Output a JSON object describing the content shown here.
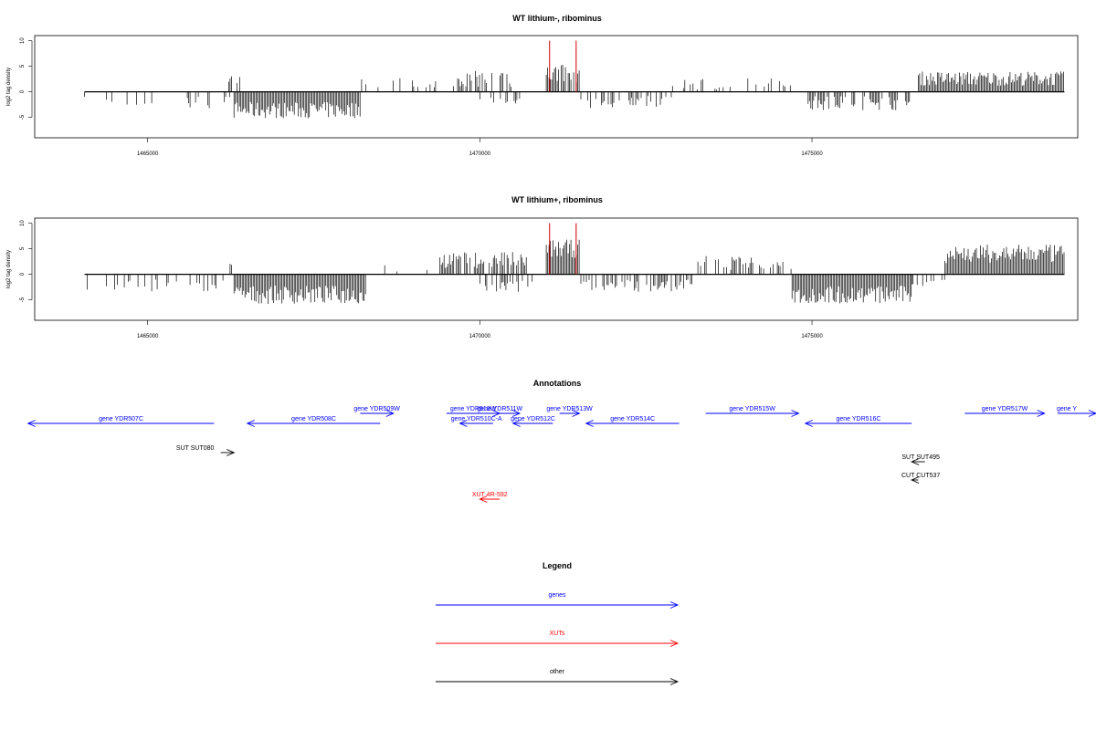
{
  "colors": {
    "gene": "#0000ff",
    "xut": "#ff0000",
    "other": "#000000",
    "data": "#000000"
  },
  "chart_data": [
    {
      "type": "bar",
      "title": "WT lithium-, ribominus",
      "ylabel": "log2 tag density",
      "xlim": [
        1463300,
        1479000
      ],
      "ylim": [
        -9,
        11
      ],
      "xticks": [
        1465000,
        1470000,
        1475000
      ],
      "yticks": [
        -5,
        0,
        5,
        10
      ],
      "highlight_positions": [
        1471050,
        1471450
      ],
      "highlight_value": 10,
      "segments": [
        {
          "start": 1464050,
          "end": 1466300,
          "mean": -2.0,
          "amp": 1.2,
          "density": 0.18
        },
        {
          "start": 1466200,
          "end": 1466400,
          "mean": 2.5,
          "amp": 1.0,
          "density": 0.3
        },
        {
          "start": 1466300,
          "end": 1468200,
          "mean": -3.6,
          "amp": 1.6,
          "density": 1.0
        },
        {
          "start": 1468200,
          "end": 1469500,
          "mean": 1.8,
          "amp": 1.0,
          "density": 0.2
        },
        {
          "start": 1469500,
          "end": 1470600,
          "mean": 2.5,
          "amp": 1.6,
          "density": 0.55
        },
        {
          "start": 1470000,
          "end": 1470600,
          "mean": -1.6,
          "amp": 1.0,
          "density": 0.35
        },
        {
          "start": 1471000,
          "end": 1471500,
          "mean": 3.5,
          "amp": 1.8,
          "density": 0.8
        },
        {
          "start": 1471500,
          "end": 1472900,
          "mean": -2.0,
          "amp": 1.2,
          "density": 0.45
        },
        {
          "start": 1472900,
          "end": 1474700,
          "mean": 1.5,
          "amp": 1.2,
          "density": 0.25
        },
        {
          "start": 1474900,
          "end": 1476500,
          "mean": -2.2,
          "amp": 1.4,
          "density": 0.6
        },
        {
          "start": 1476600,
          "end": 1478800,
          "mean": 2.6,
          "amp": 1.4,
          "density": 1.0
        }
      ]
    },
    {
      "type": "bar",
      "title": "WT lithium+, ribominus",
      "ylabel": "log2 tag density",
      "xlim": [
        1463300,
        1479000
      ],
      "ylim": [
        -9,
        11
      ],
      "xticks": [
        1465000,
        1470000,
        1475000
      ],
      "yticks": [
        -5,
        0,
        5,
        10
      ],
      "highlight_positions": [
        1471050,
        1471450
      ],
      "highlight_value": 10,
      "segments": [
        {
          "start": 1464050,
          "end": 1466200,
          "mean": -2.3,
          "amp": 1.3,
          "density": 0.3
        },
        {
          "start": 1466200,
          "end": 1466300,
          "mean": 1.5,
          "amp": 0.6,
          "density": 0.2
        },
        {
          "start": 1466300,
          "end": 1468300,
          "mean": -4.0,
          "amp": 1.8,
          "density": 1.0
        },
        {
          "start": 1468300,
          "end": 1469500,
          "mean": 1.2,
          "amp": 0.8,
          "density": 0.1
        },
        {
          "start": 1469400,
          "end": 1470700,
          "mean": 2.8,
          "amp": 1.6,
          "density": 0.8
        },
        {
          "start": 1470000,
          "end": 1470800,
          "mean": -2.4,
          "amp": 1.2,
          "density": 0.6
        },
        {
          "start": 1471000,
          "end": 1471500,
          "mean": 5.0,
          "amp": 1.8,
          "density": 1.0
        },
        {
          "start": 1471500,
          "end": 1473200,
          "mean": -2.2,
          "amp": 1.2,
          "density": 0.55
        },
        {
          "start": 1473200,
          "end": 1474700,
          "mean": 2.2,
          "amp": 1.4,
          "density": 0.45
        },
        {
          "start": 1474700,
          "end": 1476500,
          "mean": -4.0,
          "amp": 1.8,
          "density": 1.0
        },
        {
          "start": 1476500,
          "end": 1477000,
          "mean": -1.5,
          "amp": 0.8,
          "density": 0.25
        },
        {
          "start": 1477000,
          "end": 1478800,
          "mean": 4.0,
          "amp": 1.8,
          "density": 1.0
        }
      ]
    }
  ],
  "annotations": {
    "title": "Annotations",
    "features": [
      {
        "label": "gene YDR507C",
        "start": 1463200,
        "end": 1466000,
        "strand": "-",
        "row": 1,
        "kind": "gene"
      },
      {
        "label": "gene YDR508C",
        "start": 1466500,
        "end": 1468500,
        "strand": "-",
        "row": 1,
        "kind": "gene"
      },
      {
        "label": "gene YDR509W",
        "start": 1468200,
        "end": 1468700,
        "strand": "+",
        "row": 0,
        "kind": "gene"
      },
      {
        "label": "gene YDR510W",
        "start": 1469500,
        "end": 1470300,
        "strand": "+",
        "row": 0,
        "kind": "gene"
      },
      {
        "label": "gene YDR510C-A",
        "start": 1469700,
        "end": 1470200,
        "strand": "-",
        "row": 1,
        "kind": "gene"
      },
      {
        "label": "gene YDR511W",
        "start": 1470000,
        "end": 1470600,
        "strand": "+",
        "row": 0,
        "kind": "gene"
      },
      {
        "label": "gene YDR512C",
        "start": 1470500,
        "end": 1471100,
        "strand": "-",
        "row": 1,
        "kind": "gene"
      },
      {
        "label": "gene YDR513W",
        "start": 1471200,
        "end": 1471500,
        "strand": "+",
        "row": 0,
        "kind": "gene"
      },
      {
        "label": "gene YDR514C",
        "start": 1471600,
        "end": 1473000,
        "strand": "-",
        "row": 1,
        "kind": "gene"
      },
      {
        "label": "gene YDR515W",
        "start": 1473400,
        "end": 1474800,
        "strand": "+",
        "row": 0,
        "kind": "gene"
      },
      {
        "label": "gene YDR516C",
        "start": 1474900,
        "end": 1476500,
        "strand": "-",
        "row": 1,
        "kind": "gene"
      },
      {
        "label": "gene YDR517W",
        "start": 1477300,
        "end": 1478500,
        "strand": "+",
        "row": 0,
        "kind": "gene"
      },
      {
        "label": "gene Y",
        "start": 1478700,
        "end": 1479500,
        "strand": "+",
        "row": 0,
        "kind": "gene"
      },
      {
        "label": "SUT SUT080",
        "start": 1466100,
        "end": 1466300,
        "strand": "+",
        "row": 2,
        "kind": "other"
      },
      {
        "label": "SUT SUT495",
        "start": 1476500,
        "end": 1476700,
        "strand": "-",
        "row": 3,
        "kind": "other"
      },
      {
        "label": "CUT CUT537",
        "start": 1476500,
        "end": 1476600,
        "strand": "-",
        "row": 4,
        "kind": "other"
      },
      {
        "label": "XUT 4R-592",
        "start": 1470000,
        "end": 1470300,
        "strand": "-",
        "row": 5,
        "kind": "xut"
      }
    ]
  },
  "legend": {
    "title": "Legend",
    "items": [
      {
        "label": "genes",
        "kind": "gene"
      },
      {
        "label": "XUTs",
        "kind": "xut"
      },
      {
        "label": "other",
        "kind": "other"
      }
    ]
  }
}
